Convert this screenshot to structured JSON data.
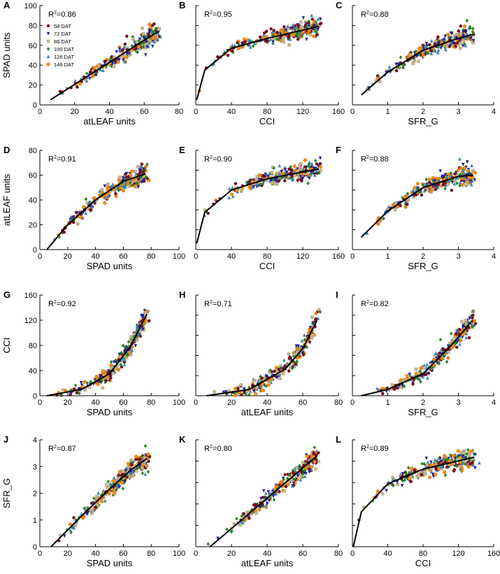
{
  "figure": {
    "series": [
      {
        "name": "58 DAT",
        "color": "#7a0c1e",
        "marker": "circle"
      },
      {
        "name": "72 DAT",
        "color": "#1f1fa8",
        "marker": "triangle-down"
      },
      {
        "name": "86 DAT",
        "color": "#c8b488",
        "marker": "square"
      },
      {
        "name": "100 DAT",
        "color": "#1f8a1f",
        "marker": "diamond"
      },
      {
        "name": "126 DAT",
        "color": "#3a86b8",
        "marker": "triangle-up"
      },
      {
        "name": "146 DAT",
        "color": "#f08a10",
        "marker": "hexagon"
      }
    ]
  },
  "chart_data": [
    {
      "type": "scatter",
      "letter": "A",
      "xlabel": "atLEAF units",
      "ylabel": "SPAD units",
      "r2": "0.86",
      "xlim": [
        0,
        80
      ],
      "ylim": [
        0,
        100
      ],
      "xticks": [
        "0",
        "20",
        "40",
        "60",
        "80"
      ],
      "yticks": [
        "0",
        "20",
        "40",
        "60",
        "80",
        "100"
      ],
      "fit": "linear",
      "fit_range": [
        6,
        68
      ],
      "fit_curve": [
        [
          6,
          5
        ],
        [
          68,
          74
        ]
      ],
      "legend": true
    },
    {
      "type": "scatter",
      "letter": "B",
      "xlabel": "CCI",
      "ylabel": "",
      "r2": "0.95",
      "xlim": [
        0,
        160
      ],
      "ylim": [
        0,
        100
      ],
      "xticks": [
        "0",
        "40",
        "80",
        "120",
        "160"
      ],
      "yticks": [],
      "fit": "log",
      "fit_range": [
        1,
        138
      ],
      "fit_curve": [
        [
          1,
          5
        ],
        [
          10,
          35
        ],
        [
          40,
          57
        ],
        [
          80,
          67
        ],
        [
          138,
          79
        ]
      ],
      "legend": false
    },
    {
      "type": "scatter",
      "letter": "C",
      "xlabel": "SFR_G",
      "ylabel": "",
      "r2": "0.88",
      "xlim": [
        0,
        4
      ],
      "ylim": [
        0,
        100
      ],
      "xticks": [
        "0",
        "1",
        "2",
        "3",
        "4"
      ],
      "yticks": [],
      "fit": "quadratic",
      "fit_range": [
        0.25,
        3.4
      ],
      "fit_curve": [
        [
          0.25,
          10
        ],
        [
          1,
          33
        ],
        [
          2,
          55
        ],
        [
          3,
          67
        ],
        [
          3.4,
          71
        ]
      ],
      "legend": false
    },
    {
      "type": "scatter",
      "letter": "D",
      "xlabel": "SPAD units",
      "ylabel": "atLEAF units",
      "r2": "0.91",
      "xlim": [
        0,
        100
      ],
      "ylim": [
        0,
        80
      ],
      "xticks": [
        "0",
        "20",
        "40",
        "60",
        "80",
        "100"
      ],
      "yticks": [
        "0",
        "20",
        "40",
        "60",
        "80"
      ],
      "fit": "quadratic",
      "fit_range": [
        5,
        76
      ],
      "fit_curve": [
        [
          5,
          0
        ],
        [
          20,
          20
        ],
        [
          40,
          40
        ],
        [
          60,
          55
        ],
        [
          76,
          61
        ]
      ],
      "legend": false
    },
    {
      "type": "scatter",
      "letter": "E",
      "xlabel": "CCI",
      "ylabel": "",
      "r2": "0.90",
      "xlim": [
        0,
        160
      ],
      "ylim": [
        0,
        80
      ],
      "xticks": [
        "0",
        "40",
        "80",
        "120",
        "160"
      ],
      "yticks": [],
      "fit": "log",
      "fit_range": [
        1,
        138
      ],
      "fit_curve": [
        [
          1,
          5
        ],
        [
          10,
          30
        ],
        [
          40,
          48
        ],
        [
          80,
          57
        ],
        [
          138,
          65
        ]
      ],
      "legend": false
    },
    {
      "type": "scatter",
      "letter": "F",
      "xlabel": "SFR_G",
      "ylabel": "",
      "r2": "0.88",
      "xlim": [
        0,
        4
      ],
      "ylim": [
        0,
        80
      ],
      "xticks": [
        "0",
        "1",
        "2",
        "3",
        "4"
      ],
      "yticks": [],
      "fit": "quadratic",
      "fit_range": [
        0.25,
        3.4
      ],
      "fit_curve": [
        [
          0.25,
          10
        ],
        [
          1,
          31
        ],
        [
          2,
          50
        ],
        [
          3,
          59
        ],
        [
          3.4,
          60
        ]
      ],
      "legend": false
    },
    {
      "type": "scatter",
      "letter": "G",
      "xlabel": "SPAD units",
      "ylabel": "CCI",
      "r2": "0.92",
      "xlim": [
        0,
        100
      ],
      "ylim": [
        0,
        160
      ],
      "xticks": [
        "0",
        "20",
        "40",
        "60",
        "80",
        "100"
      ],
      "yticks": [
        "0",
        "40",
        "80",
        "120",
        "160"
      ],
      "fit": "exponential",
      "fit_range": [
        5,
        77
      ],
      "fit_curve": [
        [
          5,
          0
        ],
        [
          30,
          10
        ],
        [
          50,
          35
        ],
        [
          65,
          78
        ],
        [
          77,
          130
        ]
      ],
      "legend": false
    },
    {
      "type": "scatter",
      "letter": "H",
      "xlabel": "atLEAF units",
      "ylabel": "",
      "r2": "0.71",
      "xlim": [
        0,
        80
      ],
      "ylim": [
        0,
        160
      ],
      "xticks": [
        "0",
        "20",
        "40",
        "60",
        "80"
      ],
      "yticks": [],
      "fit": "exponential",
      "fit_range": [
        6,
        68
      ],
      "fit_curve": [
        [
          6,
          0
        ],
        [
          30,
          10
        ],
        [
          50,
          42
        ],
        [
          60,
          75
        ],
        [
          68,
          120
        ]
      ],
      "legend": false
    },
    {
      "type": "scatter",
      "letter": "I",
      "xlabel": "SFR_G",
      "ylabel": "",
      "r2": "0.82",
      "xlim": [
        0,
        4
      ],
      "ylim": [
        0,
        160
      ],
      "xticks": [
        "0",
        "1",
        "2",
        "3",
        "4"
      ],
      "yticks": [],
      "fit": "exponential",
      "fit_range": [
        0.25,
        3.4
      ],
      "fit_curve": [
        [
          0.25,
          0
        ],
        [
          1,
          10
        ],
        [
          2,
          35
        ],
        [
          2.8,
          80
        ],
        [
          3.4,
          120
        ]
      ],
      "legend": false
    },
    {
      "type": "scatter",
      "letter": "J",
      "xlabel": "SPAD units",
      "ylabel": "SFR_G",
      "r2": "0.87",
      "xlim": [
        0,
        100
      ],
      "ylim": [
        0,
        4
      ],
      "xticks": [
        "0",
        "20",
        "40",
        "60",
        "80",
        "100"
      ],
      "yticks": [
        "0",
        "1",
        "2",
        "3",
        "4"
      ],
      "fit": "quadratic",
      "fit_range": [
        8,
        77
      ],
      "fit_curve": [
        [
          8,
          0
        ],
        [
          30,
          1.15
        ],
        [
          50,
          2.15
        ],
        [
          65,
          2.85
        ],
        [
          77,
          3.3
        ]
      ],
      "legend": false
    },
    {
      "type": "scatter",
      "letter": "K",
      "xlabel": "atLEAF units",
      "ylabel": "",
      "r2": "0.80",
      "xlim": [
        0,
        80
      ],
      "ylim": [
        0,
        4
      ],
      "xticks": [
        "0",
        "20",
        "40",
        "60",
        "80"
      ],
      "yticks": [],
      "fit": "linear",
      "fit_range": [
        8,
        68
      ],
      "fit_curve": [
        [
          8,
          0
        ],
        [
          68,
          3.4
        ]
      ],
      "legend": false
    },
    {
      "type": "scatter",
      "letter": "L",
      "xlabel": "CCI",
      "ylabel": "",
      "r2": "0.89",
      "xlim": [
        0,
        160
      ],
      "ylim": [
        0,
        4
      ],
      "xticks": [
        "0",
        "40",
        "80",
        "120",
        "160"
      ],
      "yticks": [],
      "fit": "log",
      "fit_range": [
        1,
        138
      ],
      "fit_curve": [
        [
          1,
          0
        ],
        [
          10,
          1.3
        ],
        [
          40,
          2.35
        ],
        [
          80,
          2.9
        ],
        [
          138,
          3.35
        ]
      ],
      "legend": false
    }
  ]
}
